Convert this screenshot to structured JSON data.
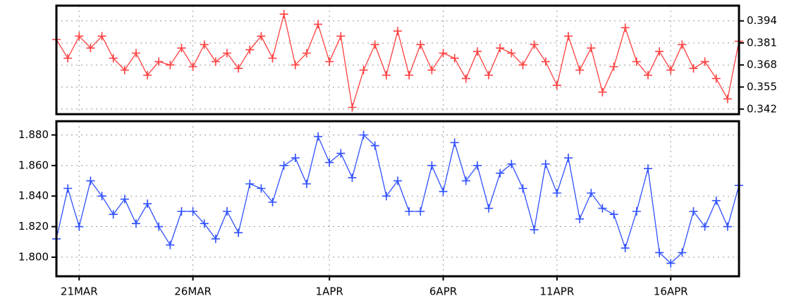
{
  "chart_data": [
    {
      "type": "line",
      "grid": true,
      "yaxis_side": "right",
      "xlim": [
        -1,
        29
      ],
      "xticks": [
        0,
        5,
        11,
        16,
        21,
        26
      ],
      "ylim": [
        0.339,
        0.403
      ],
      "yticks": [
        0.394,
        0.381,
        0.368,
        0.355,
        0.342
      ],
      "x": [
        -1,
        -0.5,
        0,
        0.5,
        1,
        1.5,
        2,
        2.5,
        3,
        3.5,
        4,
        4.5,
        5,
        5.5,
        6,
        6.5,
        7,
        7.5,
        8,
        8.5,
        9,
        9.5,
        10,
        10.5,
        11,
        11.5,
        12,
        12.5,
        13,
        13.5,
        14,
        14.5,
        15,
        15.5,
        16,
        16.5,
        17,
        17.5,
        18,
        18.5,
        19,
        19.5,
        20,
        20.5,
        21,
        21.5,
        22,
        22.5,
        23,
        23.5,
        24,
        24.5,
        25,
        25.5,
        26,
        26.5,
        27,
        27.5,
        28,
        28.5,
        29
      ],
      "series": [
        {
          "color": "#ff4040",
          "values": [
            0.383,
            0.372,
            0.385,
            0.378,
            0.385,
            0.372,
            0.365,
            0.375,
            0.362,
            0.37,
            0.368,
            0.378,
            0.367,
            0.38,
            0.37,
            0.375,
            0.366,
            0.377,
            0.385,
            0.372,
            0.398,
            0.368,
            0.375,
            0.392,
            0.37,
            0.385,
            0.343,
            0.365,
            0.38,
            0.362,
            0.388,
            0.362,
            0.38,
            0.365,
            0.375,
            0.372,
            0.36,
            0.376,
            0.362,
            0.378,
            0.375,
            0.368,
            0.38,
            0.37,
            0.356,
            0.385,
            0.365,
            0.378,
            0.352,
            0.367,
            0.39,
            0.37,
            0.362,
            0.376,
            0.365,
            0.38,
            0.366,
            0.37,
            0.36,
            0.348,
            0.382
          ]
        }
      ]
    },
    {
      "type": "line",
      "grid": true,
      "yaxis_side": "left",
      "xlim": [
        -1,
        29
      ],
      "xticks": [
        {
          "value": 0,
          "label": "21MAR"
        },
        {
          "value": 5,
          "label": "26MAR"
        },
        {
          "value": 11,
          "label": "1APR"
        },
        {
          "value": 16,
          "label": "6APR"
        },
        {
          "value": 21,
          "label": "11APR"
        },
        {
          "value": 26,
          "label": "16APR"
        }
      ],
      "ylim": [
        1.7875,
        1.889
      ],
      "yticks": [
        {
          "value": 1.88,
          "label": "1.880"
        },
        {
          "value": 1.86,
          "label": "1.860"
        },
        {
          "value": 1.84,
          "label": "1.840"
        },
        {
          "value": 1.82,
          "label": "1.820"
        },
        {
          "value": 1.8,
          "label": "1.800"
        }
      ],
      "x": [
        -1,
        -0.5,
        0,
        0.5,
        1,
        1.5,
        2,
        2.5,
        3,
        3.5,
        4,
        4.5,
        5,
        5.5,
        6,
        6.5,
        7,
        7.5,
        8,
        8.5,
        9,
        9.5,
        10,
        10.5,
        11,
        11.5,
        12,
        12.5,
        13,
        13.5,
        14,
        14.5,
        15,
        15.5,
        16,
        16.5,
        17,
        17.5,
        18,
        18.5,
        19,
        19.5,
        20,
        20.5,
        21,
        21.5,
        22,
        22.5,
        23,
        23.5,
        24,
        24.5,
        25,
        25.5,
        26,
        26.5,
        27,
        27.5,
        28,
        28.5,
        29
      ],
      "series": [
        {
          "color": "#3050ff",
          "values": [
            1.812,
            1.845,
            1.82,
            1.85,
            1.84,
            1.828,
            1.838,
            1.822,
            1.835,
            1.82,
            1.808,
            1.83,
            1.83,
            1.822,
            1.812,
            1.83,
            1.816,
            1.848,
            1.845,
            1.836,
            1.86,
            1.865,
            1.848,
            1.879,
            1.862,
            1.868,
            1.852,
            1.88,
            1.873,
            1.84,
            1.85,
            1.83,
            1.83,
            1.86,
            1.843,
            1.875,
            1.85,
            1.86,
            1.832,
            1.855,
            1.861,
            1.845,
            1.818,
            1.861,
            1.842,
            1.865,
            1.825,
            1.842,
            1.832,
            1.828,
            1.806,
            1.83,
            1.858,
            1.803,
            1.796,
            1.803,
            1.83,
            1.82,
            1.837,
            1.82,
            1.847
          ]
        }
      ]
    }
  ]
}
